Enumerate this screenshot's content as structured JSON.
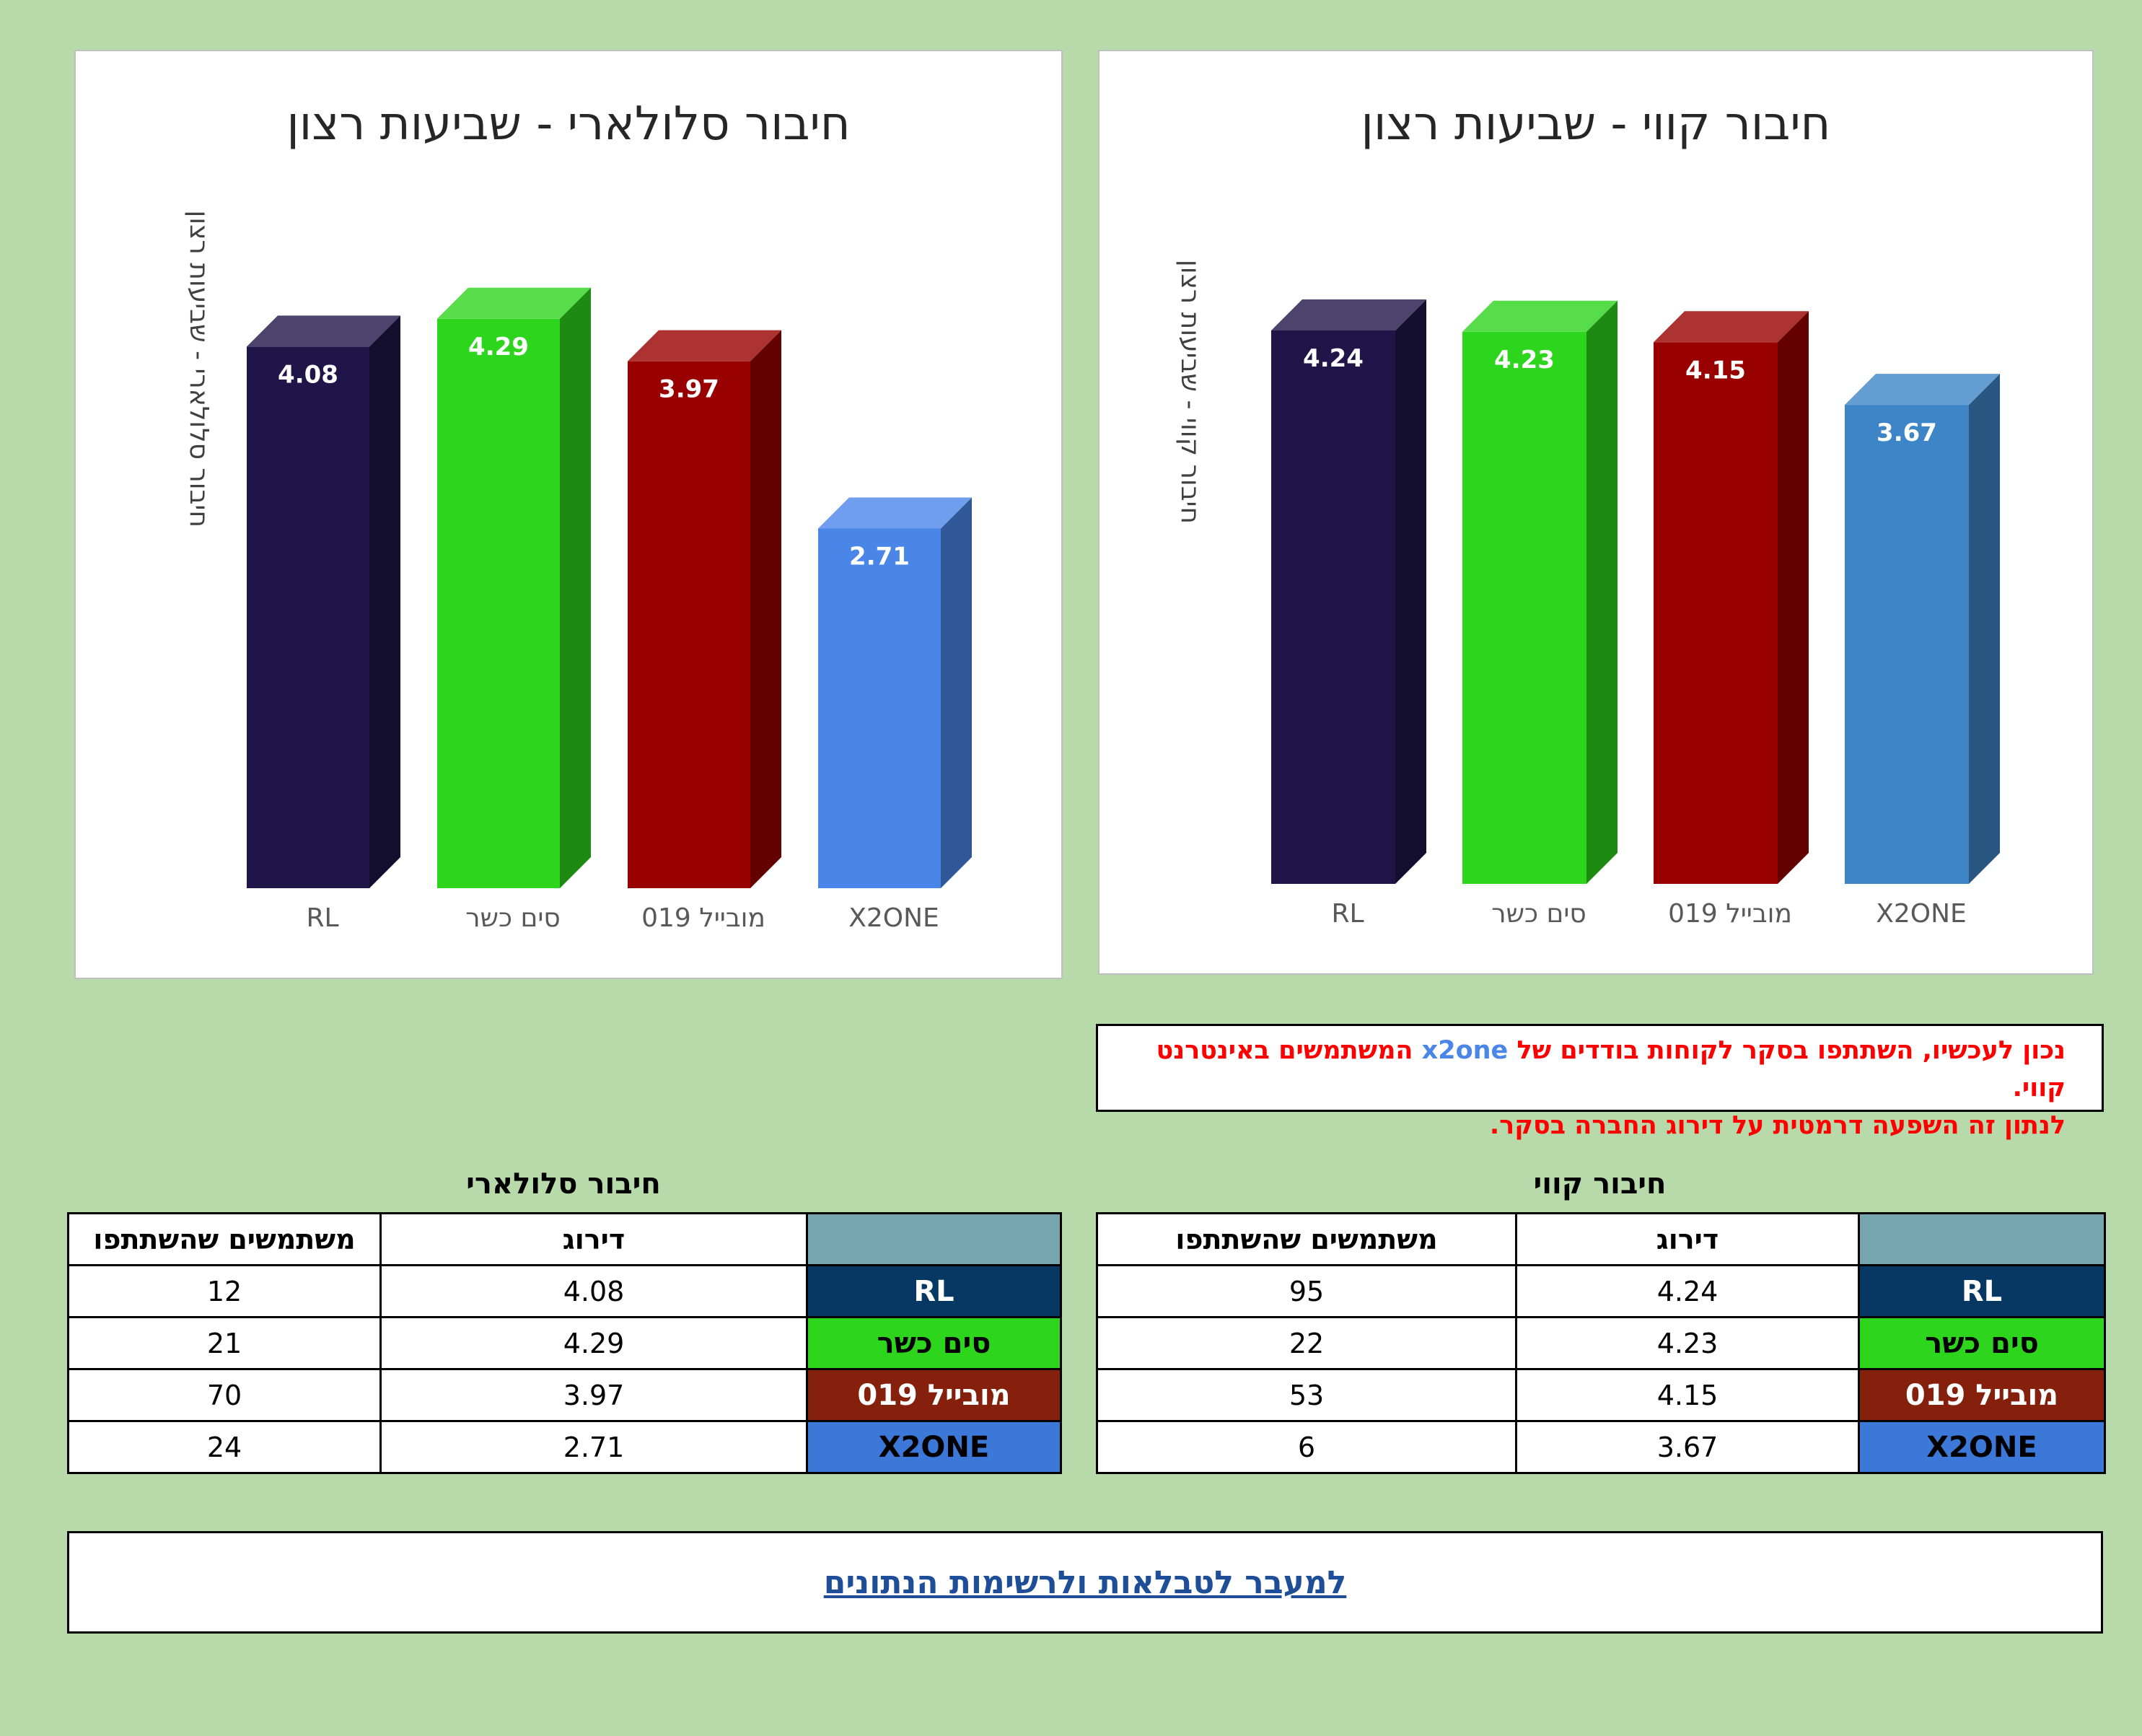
{
  "chart_data": [
    {
      "type": "bar",
      "title": "חיבור סלולארי - שביעות רצון",
      "ylabel": "חיבור סלולארי - שביעות רצון",
      "xlabel": "",
      "categories": [
        "RL",
        "סים כשר",
        "מובייל 019",
        "X2ONE"
      ],
      "values": [
        4.08,
        4.29,
        3.97,
        2.71
      ],
      "value_labels": [
        "4.08",
        "4.29",
        "3.97",
        "2.71"
      ],
      "colors": [
        "#1f1549",
        "#2dd51c",
        "#990000",
        "#4a86e8"
      ],
      "ylim": [
        0,
        5
      ],
      "grid": false,
      "legend": "none"
    },
    {
      "type": "bar",
      "title": "חיבור קווי - שביעות רצון",
      "ylabel": "חיבור קווי - שביעות רצון",
      "xlabel": "",
      "categories": [
        "RL",
        "סים כשר",
        "מובייל 019",
        "X2ONE"
      ],
      "values": [
        4.24,
        4.23,
        4.15,
        3.67
      ],
      "value_labels": [
        "4.24",
        "4.23",
        "4.15",
        "3.67"
      ],
      "colors": [
        "#1f1549",
        "#2dd51c",
        "#990000",
        "#3d85c6"
      ],
      "ylim": [
        0,
        5
      ],
      "grid": false,
      "legend": "none"
    }
  ],
  "notice": {
    "line1_a": "נכון לעכשיו, השתתפו בסקר לקוחות בודדים של ",
    "line1_brand": "x2one",
    "line1_b": " המשתמשים באינטרנט קווי.",
    "line2": "לנתון זה השפעה דרמטית על דירוג החברה בסקר."
  },
  "tables": {
    "cellular": {
      "title": "חיבור סלולארי",
      "headers": [
        "",
        "דירוג",
        "משתמשים שהשתתפו"
      ],
      "rows": [
        {
          "company": "RL",
          "rating": "4.08",
          "users": "12"
        },
        {
          "company": "סים כשר",
          "rating": "4.29",
          "users": "21"
        },
        {
          "company": "מובייל 019",
          "rating": "3.97",
          "users": "70"
        },
        {
          "company": "X2ONE",
          "rating": "2.71",
          "users": "24"
        }
      ]
    },
    "wired": {
      "title": "חיבור קווי",
      "headers": [
        "",
        "דירוג",
        "משתמשים שהשתתפו"
      ],
      "rows": [
        {
          "company": "RL",
          "rating": "4.24",
          "users": "95"
        },
        {
          "company": "סים כשר",
          "rating": "4.23",
          "users": "22"
        },
        {
          "company": "מובייל 019",
          "rating": "4.15",
          "users": "53"
        },
        {
          "company": "X2ONE",
          "rating": "3.67",
          "users": "6"
        }
      ]
    }
  },
  "company_colors": {
    "header": "#76a5af",
    "RL": "#073763",
    "sim_kasher": "#2dd51c",
    "mobile019": "#85200c",
    "x2one": "#3c78d8"
  },
  "link": {
    "label": "למעבר לטבלאות ולרשימות הנתונים"
  }
}
